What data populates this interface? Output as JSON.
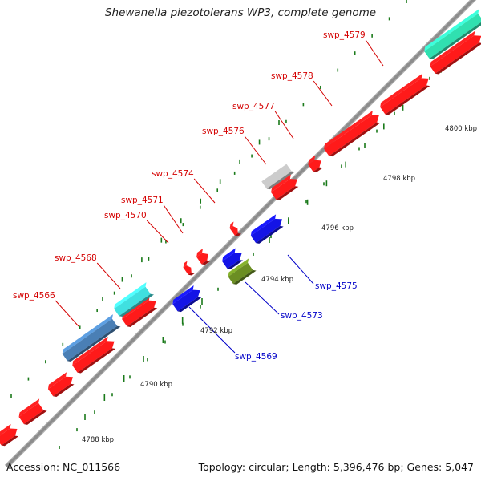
{
  "title": "Shewanella piezotolerans WP3, complete genome",
  "footer": {
    "accession": "Accession: NC_011566",
    "summary": "Topology: circular; Length: 5,396,476 bp; Genes: 5,047"
  },
  "scale": {
    "unit": "kbp",
    "labels": [
      "4788 kbp",
      "4790 kbp",
      "4792 kbp",
      "4794 kbp",
      "4796 kbp",
      "4798 kbp",
      "4800 kbp"
    ]
  },
  "colors": {
    "forward_gene": "#ff1a1a",
    "reverse_gene": "#1414e6",
    "forward_label": "#d40000",
    "reverse_label": "#0000c8",
    "tick": "#1a7a1a",
    "backbone": "#8c8c8c",
    "teal": "#30e0b0",
    "cyan": "#40e0e0",
    "steelblue": "#4a7fb5",
    "olive": "#6b8e23",
    "silver": "#cccccc"
  },
  "gene_labels": {
    "forward": [
      "swp_4566",
      "swp_4568",
      "swp_4570",
      "swp_4571",
      "swp_4574",
      "swp_4576",
      "swp_4577",
      "swp_4578",
      "swp_4579"
    ],
    "reverse": [
      "swp_4569",
      "swp_4573",
      "swp_4575"
    ]
  }
}
